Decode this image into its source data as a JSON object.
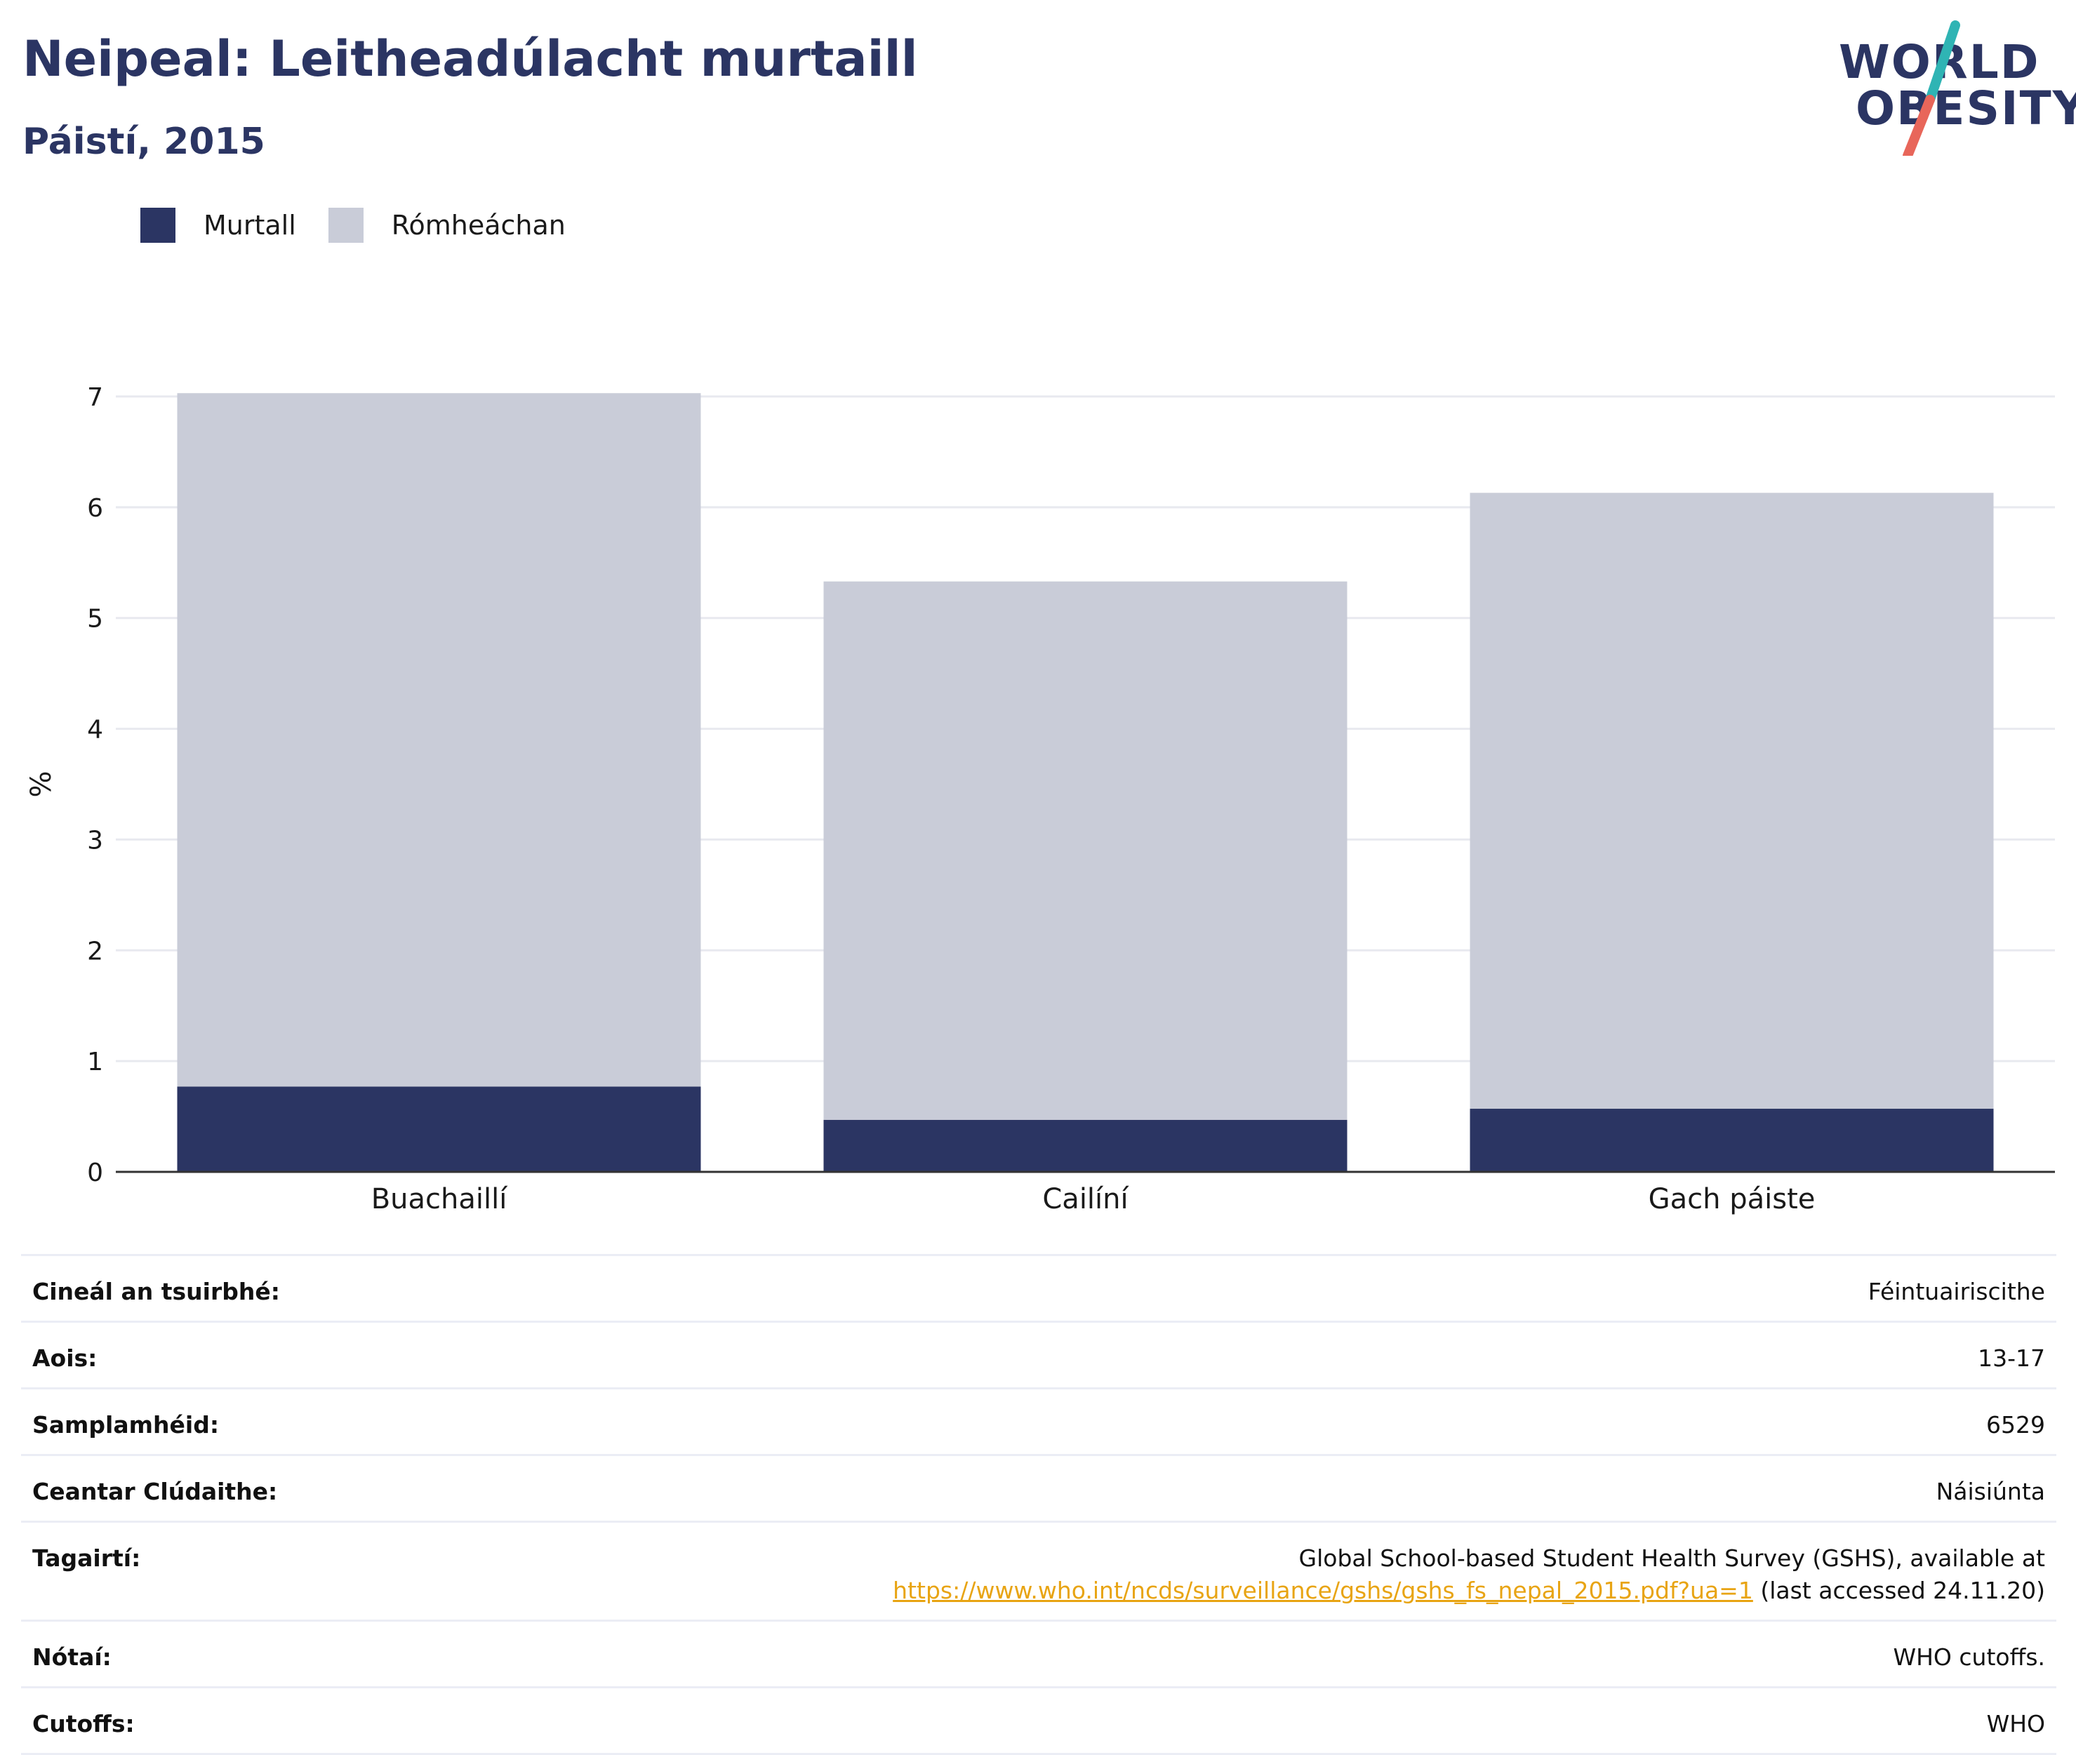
{
  "header": {
    "title": "Neipeal: Leitheadúlacht murtaill",
    "subtitle": "Páistí, 2015"
  },
  "logo": {
    "line1": "WORLD",
    "line2": "OBESITY"
  },
  "colors": {
    "obese": "#2b3563",
    "overweight": "#c9ccd8",
    "heading": "#2b3563",
    "link": "#e8a413",
    "slash_teal": "#2fb4b4",
    "slash_red": "#e8665a"
  },
  "chart_data": {
    "type": "bar",
    "stacked": true,
    "categories": [
      "Buachaillí",
      "Cailíní",
      "Gach páiste"
    ],
    "series": [
      {
        "name": "Murtall",
        "values": [
          0.77,
          0.47,
          0.57
        ]
      },
      {
        "name": "Rómheáchan",
        "values": [
          6.26,
          4.86,
          5.56
        ]
      }
    ],
    "ylabel": "%",
    "ylim": [
      0,
      7
    ],
    "yticks": [
      0,
      1,
      2,
      3,
      4,
      5,
      6,
      7
    ],
    "grid": true,
    "legend_position": "top-left"
  },
  "details": {
    "survey_type_label": "Cineál an tsuirbhé:",
    "survey_type": "Féintuairiscithe",
    "age_label": "Aois:",
    "age": "13-17",
    "sample_label": "Samplamhéid:",
    "sample": "6529",
    "coverage_label": "Ceantar Clúdaithe:",
    "coverage": "Náisiúnta",
    "references_label": "Tagairtí:",
    "references_text": "Global School-based Student Health Survey (GSHS), available at",
    "references_link": "https://www.who.int/ncds/surveillance/gshs/gshs_fs_nepal_2015.pdf?ua=1",
    "references_suffix": " (last accessed 24.11.20)",
    "notes_label": "Nótaí:",
    "notes": "WHO cutoffs.",
    "cutoffs_label": "Cutoffs:",
    "cutoffs": "WHO"
  }
}
